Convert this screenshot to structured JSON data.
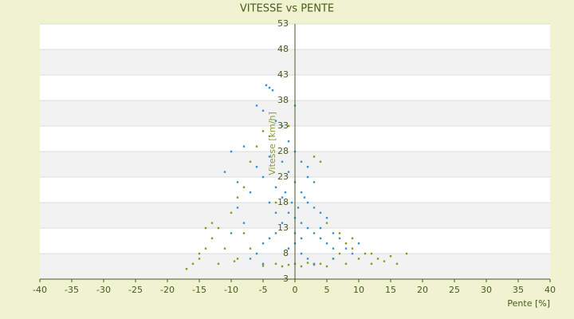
{
  "chart_data": {
    "type": "scatter",
    "title": "VITESSE vs PENTE",
    "x_label": "Pente [%]",
    "y_label": "Vitesse [km/h]",
    "xlim": [
      -40,
      40
    ],
    "xticks": [
      -40,
      -35,
      -30,
      -25,
      -20,
      -15,
      -10,
      -5,
      0,
      5,
      10,
      15,
      20,
      25,
      30,
      35,
      40
    ],
    "ylim": [
      3,
      53
    ],
    "yticks": [
      3,
      8,
      13,
      18,
      23,
      28,
      33,
      38,
      43,
      48,
      53
    ],
    "grid": true,
    "series": [
      {
        "color": "#8a9a1e",
        "x": [
          -16,
          -15,
          -14,
          -13,
          -12,
          -11,
          -10,
          -9,
          -8,
          -7,
          -6,
          -5,
          -4,
          -13,
          -15,
          -17,
          -12,
          -9,
          -7,
          -3,
          -2,
          -1,
          0,
          1,
          2,
          3,
          4,
          5,
          6,
          7,
          8,
          9,
          10,
          11,
          12,
          13,
          14,
          15,
          17.5,
          12,
          9,
          7,
          5,
          4,
          3,
          -1,
          -3,
          -14,
          -8,
          -9.5,
          8,
          -5,
          16
        ],
        "values": [
          6,
          8,
          9,
          11,
          13,
          9,
          16,
          19,
          21,
          26,
          29,
          32,
          31,
          14,
          7,
          5,
          6,
          7,
          9,
          6,
          5.5,
          5.8,
          6,
          5.5,
          6.2,
          5.8,
          6,
          5.5,
          7,
          8,
          6,
          9,
          7,
          8,
          6,
          7,
          6.5,
          7.5,
          8,
          8,
          11,
          12,
          14,
          26,
          27,
          33,
          18,
          13,
          12,
          6.5,
          10,
          5.6,
          6
        ]
      },
      {
        "color": "#3a8fd9",
        "x": [
          -4.5,
          -4,
          -3.5,
          -6,
          -5,
          -3,
          -2,
          -8,
          -10,
          -11,
          -9,
          -7,
          -6,
          -5,
          -4,
          -3,
          -2,
          -1,
          0,
          1,
          2,
          3,
          -1,
          0,
          1,
          2,
          3,
          4,
          5,
          6,
          -2,
          -3,
          -4,
          -5,
          -6,
          -7,
          0,
          1,
          2,
          3,
          4,
          5,
          6,
          7,
          8,
          9,
          -1,
          0,
          1,
          -2,
          2,
          3,
          -0.5,
          0.5,
          -1.5,
          1.5,
          0,
          -1,
          -3,
          4,
          -8,
          -9,
          -10,
          10,
          6,
          -5,
          0,
          2,
          -4,
          1
        ],
        "values": [
          41,
          40.5,
          40,
          37,
          36,
          34,
          33,
          29,
          28,
          24,
          22,
          20,
          25,
          23,
          27,
          21,
          19,
          24,
          22,
          20,
          18,
          17,
          16,
          15,
          14,
          13,
          12,
          11,
          10,
          9,
          14,
          12,
          11,
          10,
          8,
          7,
          10,
          8,
          7,
          6,
          13,
          15,
          12,
          11,
          9,
          8,
          30,
          28,
          26,
          26,
          23,
          22,
          18,
          17,
          20,
          19,
          12,
          9,
          16,
          16,
          14,
          17,
          12,
          10,
          7,
          6,
          37,
          25,
          18,
          11
        ]
      }
    ]
  }
}
